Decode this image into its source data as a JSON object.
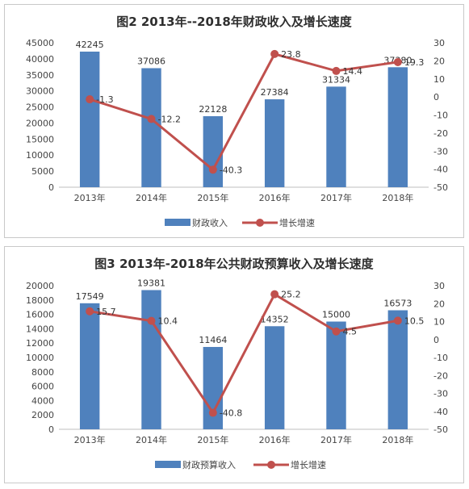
{
  "chart_data": [
    {
      "type": "bar+line",
      "title": "图2  2013年--2018年财政收入及增长速度",
      "categories": [
        "2013年",
        "2014年",
        "2015年",
        "2016年",
        "2017年",
        "2018年"
      ],
      "series": [
        {
          "name": "财政收入",
          "type": "bar",
          "axis": "left",
          "values": [
            42245,
            37086,
            22128,
            27384,
            31334,
            37380
          ]
        },
        {
          "name": "增长增速",
          "type": "line",
          "axis": "right",
          "values": [
            -1.3,
            -12.2,
            -40.3,
            23.8,
            14.4,
            19.3
          ]
        }
      ],
      "ylim_left": [
        0,
        45000
      ],
      "yticks_left": [
        0,
        5000,
        10000,
        15000,
        20000,
        25000,
        30000,
        35000,
        40000,
        45000
      ],
      "ylim_right": [
        -50,
        30
      ],
      "yticks_right": [
        30,
        20,
        10,
        0,
        -10,
        -20,
        -30,
        -40,
        -50
      ],
      "legend": "bottom",
      "colors": {
        "bar": "#4f81bd",
        "line": "#c0504d"
      }
    },
    {
      "type": "bar+line",
      "title": "图3  2013年-2018年公共财政预算收入及增长速度",
      "categories": [
        "2013年",
        "2014年",
        "2015年",
        "2016年",
        "2017年",
        "2018年"
      ],
      "series": [
        {
          "name": "财政预算收入",
          "type": "bar",
          "axis": "left",
          "values": [
            17549,
            19381,
            11464,
            14352,
            15000,
            16573
          ]
        },
        {
          "name": "增长增速",
          "type": "line",
          "axis": "right",
          "values": [
            15.7,
            10.4,
            -40.8,
            25.2,
            4.5,
            10.5
          ]
        }
      ],
      "ylim_left": [
        0,
        20000
      ],
      "yticks_left": [
        0,
        2000,
        4000,
        6000,
        8000,
        10000,
        12000,
        14000,
        16000,
        18000,
        20000
      ],
      "ylim_right": [
        -50,
        30
      ],
      "yticks_right": [
        30,
        20,
        10,
        0,
        -10,
        -20,
        -30,
        -40,
        -50
      ],
      "legend": "bottom",
      "colors": {
        "bar": "#4f81bd",
        "line": "#c0504d"
      }
    }
  ]
}
